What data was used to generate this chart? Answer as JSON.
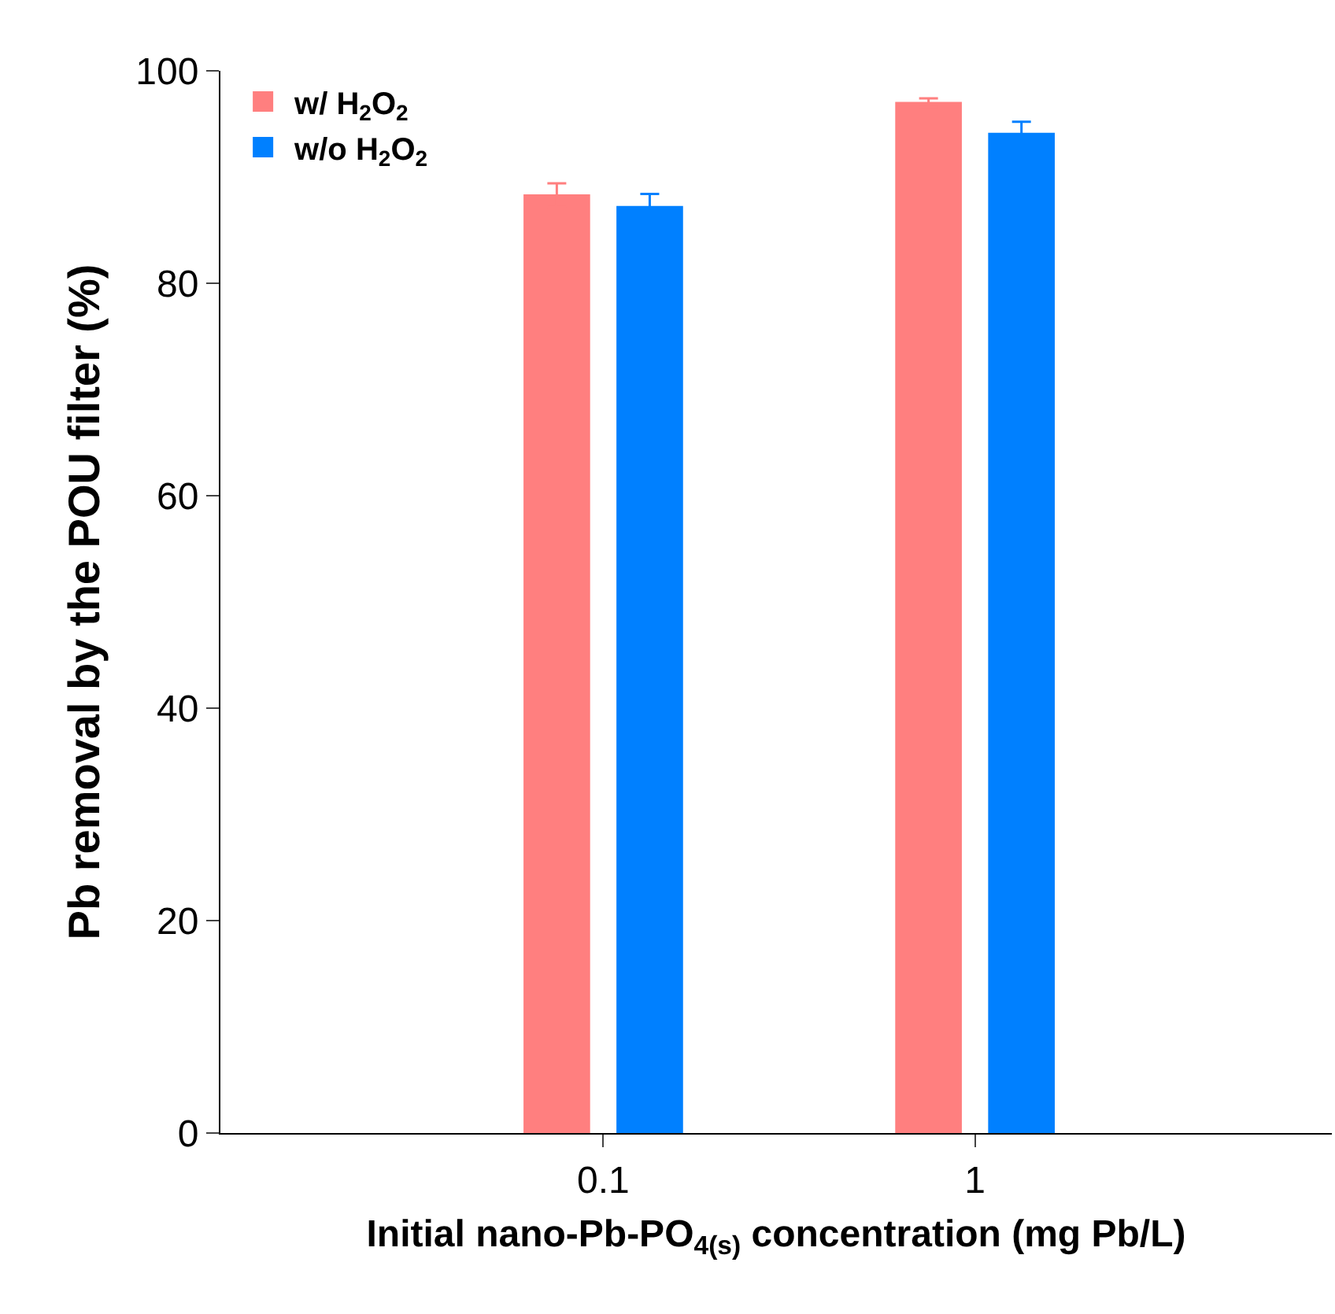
{
  "chart_data": {
    "type": "bar",
    "xlabel": "Initial nano-Pb-PO$_{4(s)}$ concentration (mg Pb/L)",
    "ylabel": "Pb removal by the POU filter (%)",
    "categories": [
      "0.1",
      "1"
    ],
    "series": [
      {
        "name": "w/ H$_{2}$O$_{2}$",
        "color": "#ff7f7f",
        "values": [
          88.3,
          97.0
        ],
        "errors": [
          1.1,
          0.4
        ]
      },
      {
        "name": "w/o H$_{2}$O$_{2}$",
        "color": "#0080ff",
        "values": [
          87.2,
          94.1
        ],
        "errors": [
          1.2,
          1.1
        ]
      }
    ],
    "ylim": [
      0,
      100
    ],
    "yticks": [
      0,
      20,
      40,
      60,
      80,
      100
    ],
    "legend": "top left"
  }
}
